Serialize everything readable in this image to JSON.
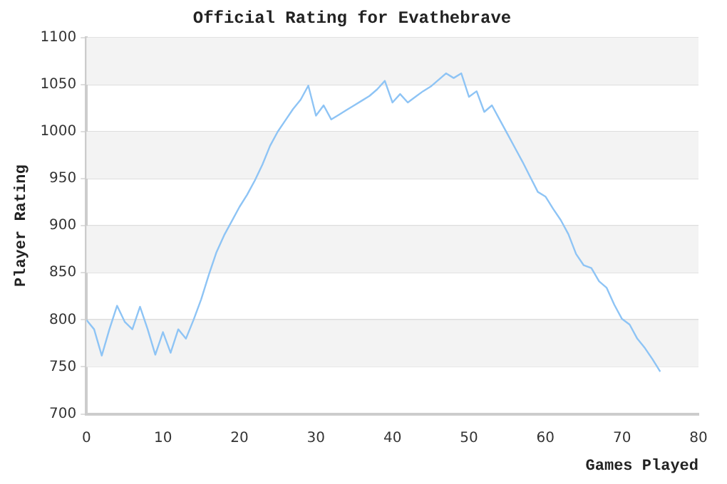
{
  "chart_data": {
    "type": "line",
    "title": "Official Rating for Evathebrave",
    "xlabel": "Games Played",
    "ylabel": "Player Rating",
    "x": [
      0,
      1,
      2,
      3,
      4,
      5,
      6,
      7,
      8,
      9,
      10,
      11,
      12,
      13,
      14,
      15,
      16,
      17,
      18,
      19,
      20,
      21,
      22,
      23,
      24,
      25,
      26,
      27,
      28,
      29,
      30,
      31,
      32,
      33,
      34,
      35,
      36,
      37,
      38,
      39,
      40,
      41,
      42,
      43,
      44,
      45,
      46,
      47,
      48,
      49,
      50,
      51,
      52,
      53,
      54,
      55,
      56,
      57,
      58,
      59,
      60,
      61,
      62,
      63,
      64,
      65,
      66,
      67,
      68,
      69,
      70,
      71,
      72,
      73,
      74,
      75
    ],
    "series": [
      {
        "color": "#8ec4f5",
        "values": [
          800,
          790,
          762,
          790,
          815,
          798,
          790,
          814,
          790,
          763,
          787,
          765,
          790,
          780,
          800,
          822,
          848,
          872,
          890,
          905,
          920,
          933,
          948,
          965,
          985,
          1000,
          1012,
          1024,
          1034,
          1049,
          1017,
          1028,
          1013,
          1018,
          1023,
          1028,
          1033,
          1038,
          1045,
          1054,
          1031,
          1040,
          1031,
          1037,
          1043,
          1048,
          1055,
          1062,
          1057,
          1062,
          1037,
          1043,
          1021,
          1028,
          1013,
          998,
          983,
          968,
          952,
          936,
          931,
          918,
          906,
          891,
          870,
          858,
          855,
          841,
          834,
          816,
          801,
          795,
          780,
          770,
          758,
          745
        ]
      }
    ],
    "xlim": [
      0,
      80
    ],
    "xticks": [
      0,
      10,
      20,
      30,
      40,
      50,
      60,
      70,
      80
    ],
    "ylim": [
      700,
      1100
    ],
    "yticks": [
      700,
      750,
      800,
      850,
      900,
      950,
      1000,
      1050,
      1100
    ],
    "grid": "y",
    "marker": "none",
    "line_style": "solid"
  }
}
